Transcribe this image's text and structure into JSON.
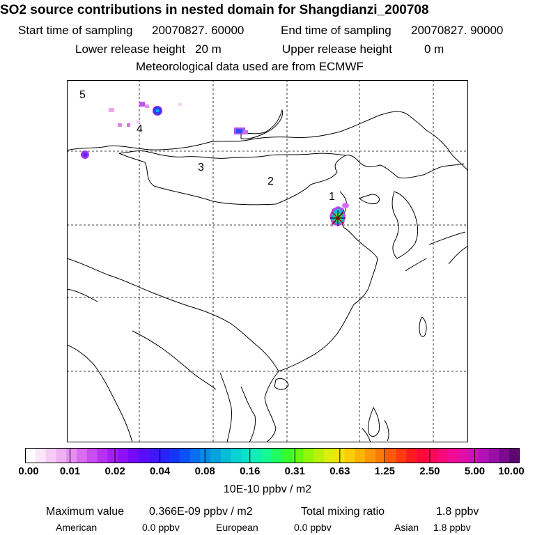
{
  "header": {
    "title": "SO2 source contributions in nested domain for Shangdianzi_200708",
    "start_label": "Start time of sampling",
    "start_value": "20070827. 60000",
    "end_label": "End time of sampling",
    "end_value": "20070827. 90000",
    "lower_label": "Lower release height",
    "lower_value": "20 m",
    "upper_label": "Upper release height",
    "upper_value": "0 m",
    "met_text": "Meteorological data used are from ECMWF"
  },
  "map": {
    "region_labels": [
      "1",
      "2",
      "3",
      "4",
      "5"
    ],
    "station_marker": "asterisk"
  },
  "colorbar": {
    "ticks": [
      "0.00",
      "0.01",
      "0.02",
      "0.04",
      "0.08",
      "0.16",
      "0.31",
      "0.63",
      "1.25",
      "2.50",
      "5.00",
      "10.00"
    ],
    "colors": [
      "#ffffff",
      "#fbe6fb",
      "#f6ccf6",
      "#efb0f2",
      "#e68ff0",
      "#d96cf0",
      "#c94ef0",
      "#b832f2",
      "#a31df4",
      "#8d10f6",
      "#750afa",
      "#5c0cfc",
      "#4216fc",
      "#2a22fc",
      "#1436fa",
      "#0a52f6",
      "#086ef0",
      "#068ae6",
      "#06a4dc",
      "#06bcd6",
      "#08d2d2",
      "#0ae2c8",
      "#10f0b0",
      "#16f890",
      "#20fc60",
      "#3afc28",
      "#64fa10",
      "#90f60a",
      "#b8f20a",
      "#dcee0a",
      "#f2e40a",
      "#fcce08",
      "#fcb406",
      "#fc9806",
      "#fc7a06",
      "#fc5a08",
      "#fc3a10",
      "#fc1c20",
      "#fc0a3a",
      "#fc0858",
      "#f80a78",
      "#f00c94",
      "#e20eaa",
      "#ce10b6",
      "#b610b8",
      "#9a0ea8",
      "#7c0a90",
      "#5c0670"
    ],
    "units": "10E-10 ppbv / m2"
  },
  "stats": {
    "max_label": "Maximum value",
    "max_value": "0.366E-09 ppbv / m2",
    "total_label": "Total mixing ratio",
    "total_value": "1.8 ppbv",
    "american_label": "American",
    "american_value": "0.0 ppbv",
    "european_label": "European",
    "european_value": "0.0 ppbv",
    "asian_label": "Asian",
    "asian_value": "1.8 ppbv"
  }
}
